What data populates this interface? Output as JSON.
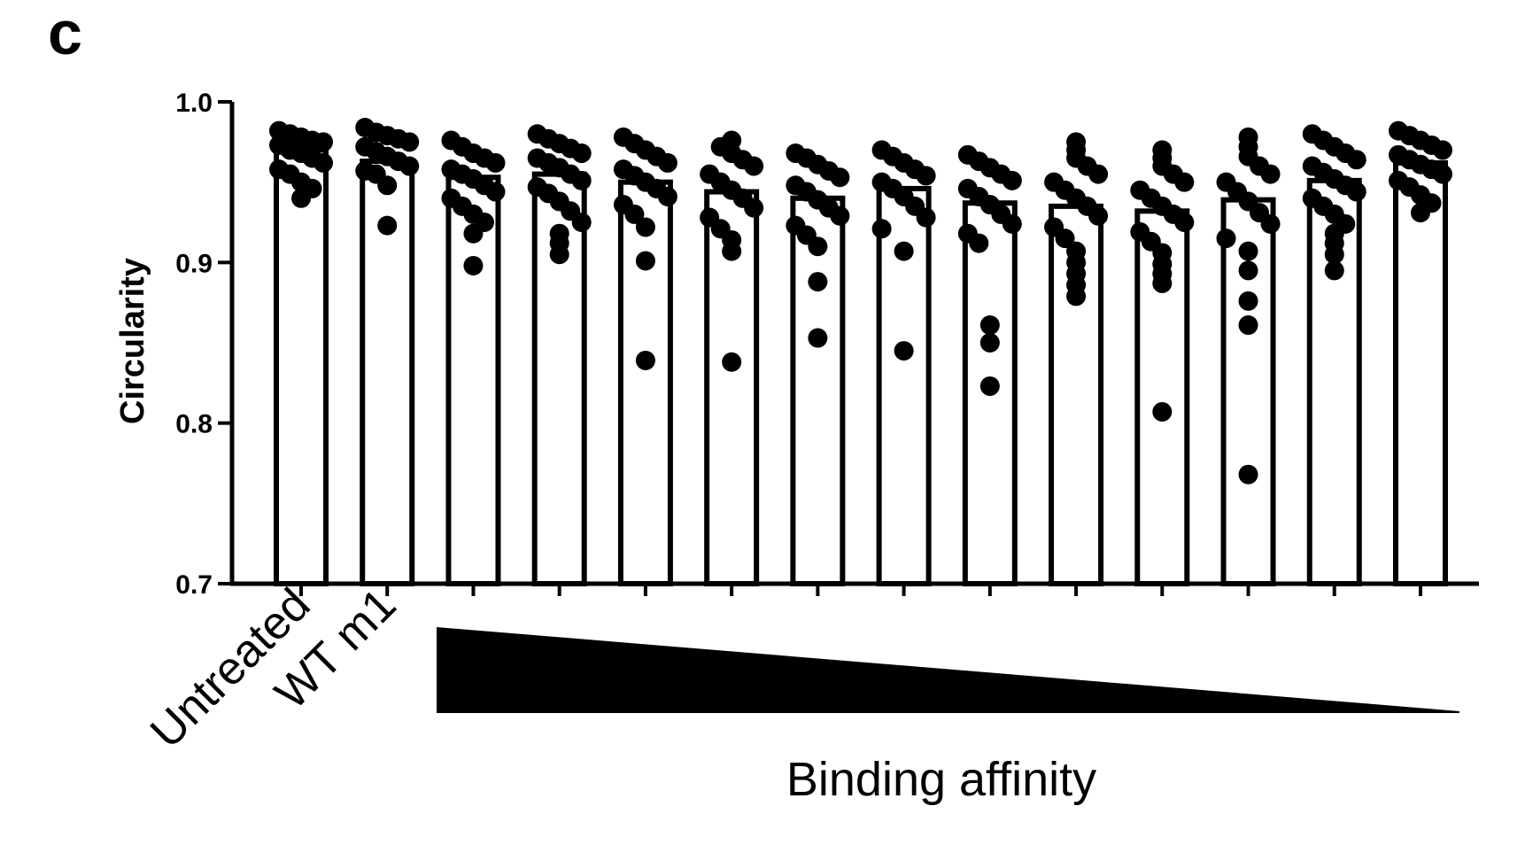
{
  "panel_label": "c",
  "chart_data": {
    "type": "bar",
    "title": "",
    "ylabel": "Circularity",
    "xlabel": "Binding affinity",
    "ylim": [
      0.7,
      1.0
    ],
    "yticks": [
      "0.7",
      "0.8",
      "0.9",
      "1.0"
    ],
    "categories": [
      "Untreated",
      "WT m1",
      "",
      "",
      "",
      "",
      "",
      "",
      "",
      "",
      "",
      "",
      "",
      ""
    ],
    "values": [
      0.97,
      0.963,
      0.953,
      0.955,
      0.95,
      0.944,
      0.94,
      0.946,
      0.937,
      0.935,
      0.932,
      0.939,
      0.951,
      0.962
    ],
    "points": [
      [
        0.982,
        0.98,
        0.978,
        0.976,
        0.975,
        0.973,
        0.97,
        0.968,
        0.965,
        0.962,
        0.958,
        0.955,
        0.95,
        0.946,
        0.94
      ],
      [
        0.984,
        0.981,
        0.979,
        0.977,
        0.975,
        0.972,
        0.969,
        0.966,
        0.963,
        0.96,
        0.957,
        0.955,
        0.948,
        0.923
      ],
      [
        0.976,
        0.972,
        0.968,
        0.965,
        0.962,
        0.958,
        0.955,
        0.952,
        0.948,
        0.944,
        0.94,
        0.935,
        0.93,
        0.925,
        0.918,
        0.898
      ],
      [
        0.98,
        0.977,
        0.974,
        0.971,
        0.968,
        0.965,
        0.962,
        0.959,
        0.955,
        0.951,
        0.947,
        0.943,
        0.938,
        0.932,
        0.925,
        0.918,
        0.912,
        0.905
      ],
      [
        0.978,
        0.974,
        0.97,
        0.966,
        0.962,
        0.958,
        0.954,
        0.95,
        0.946,
        0.941,
        0.936,
        0.93,
        0.922,
        0.901,
        0.839
      ],
      [
        0.976,
        0.972,
        0.968,
        0.964,
        0.96,
        0.955,
        0.95,
        0.945,
        0.94,
        0.934,
        0.928,
        0.921,
        0.914,
        0.907,
        0.838
      ],
      [
        0.968,
        0.965,
        0.961,
        0.957,
        0.953,
        0.948,
        0.944,
        0.939,
        0.934,
        0.929,
        0.923,
        0.917,
        0.91,
        0.888,
        0.853
      ],
      [
        0.97,
        0.966,
        0.962,
        0.958,
        0.954,
        0.95,
        0.946,
        0.941,
        0.935,
        0.928,
        0.921,
        0.907,
        0.845
      ],
      [
        0.967,
        0.963,
        0.959,
        0.955,
        0.951,
        0.946,
        0.941,
        0.936,
        0.93,
        0.924,
        0.918,
        0.912,
        0.861,
        0.85,
        0.823
      ],
      [
        0.975,
        0.97,
        0.965,
        0.96,
        0.955,
        0.95,
        0.945,
        0.94,
        0.935,
        0.929,
        0.922,
        0.915,
        0.907,
        0.9,
        0.893,
        0.886,
        0.879
      ],
      [
        0.97,
        0.965,
        0.96,
        0.955,
        0.95,
        0.945,
        0.94,
        0.935,
        0.93,
        0.925,
        0.919,
        0.913,
        0.906,
        0.899,
        0.893,
        0.887,
        0.807
      ],
      [
        0.978,
        0.972,
        0.966,
        0.96,
        0.955,
        0.95,
        0.944,
        0.938,
        0.931,
        0.924,
        0.915,
        0.907,
        0.895,
        0.876,
        0.861,
        0.768
      ],
      [
        0.98,
        0.976,
        0.972,
        0.968,
        0.964,
        0.96,
        0.956,
        0.952,
        0.948,
        0.944,
        0.94,
        0.935,
        0.93,
        0.924,
        0.918,
        0.912,
        0.905,
        0.895
      ],
      [
        0.982,
        0.979,
        0.976,
        0.973,
        0.97,
        0.967,
        0.964,
        0.961,
        0.958,
        0.955,
        0.951,
        0.947,
        0.942,
        0.937,
        0.931
      ]
    ],
    "grid": false,
    "legend": "none",
    "annotation": "descending black wedge under the treatment groups indicating binding affinity gradient",
    "colors": {
      "bar_fill": "#ffffff",
      "bar_stroke": "#000000",
      "point": "#000000",
      "wedge": "#000000"
    }
  }
}
